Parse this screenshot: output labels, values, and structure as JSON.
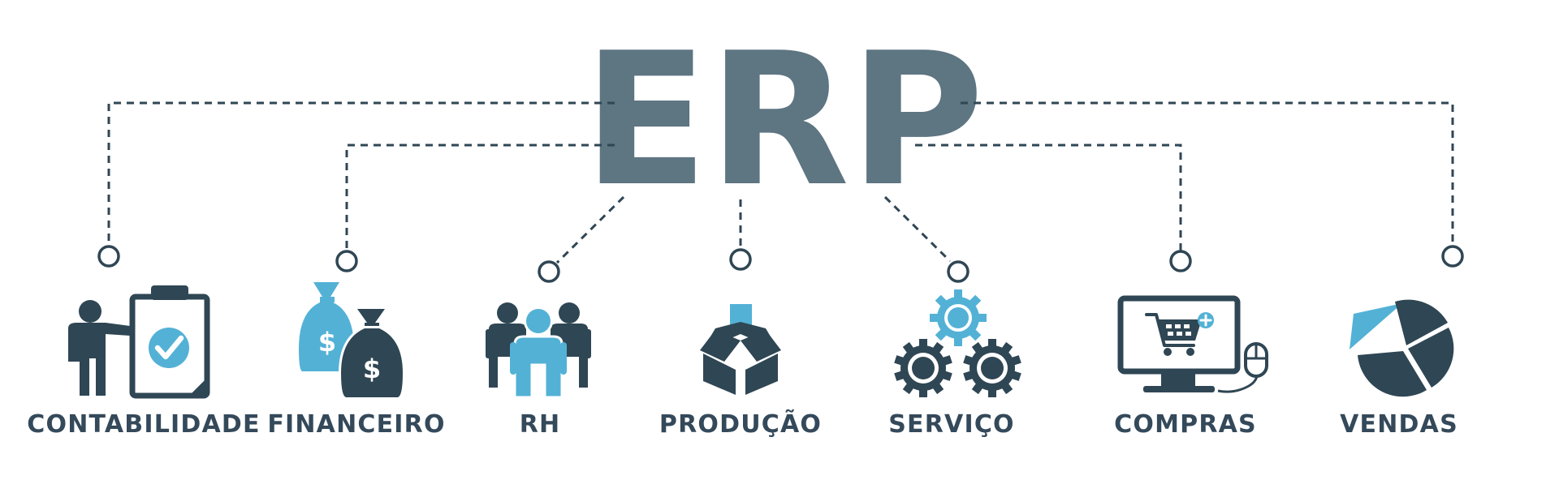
{
  "title": "ERP",
  "colors": {
    "title": "#5e7582",
    "dark": "#2f4654",
    "light": "#53b1d6",
    "label": "#34495a",
    "background": "#ffffff"
  },
  "modules": [
    {
      "label": "CONTABILIDADE",
      "icon": "presentation-checklist-icon"
    },
    {
      "label": "FINANCEIRO",
      "icon": "money-bags-icon"
    },
    {
      "label": "RH",
      "icon": "people-group-icon"
    },
    {
      "label": "PRODUÇÃO",
      "icon": "open-box-icon"
    },
    {
      "label": "SERVIÇO",
      "icon": "gears-icon"
    },
    {
      "label": "COMPRAS",
      "icon": "shopping-cart-monitor-icon"
    },
    {
      "label": "VENDAS",
      "icon": "pie-chart-icon"
    }
  ]
}
